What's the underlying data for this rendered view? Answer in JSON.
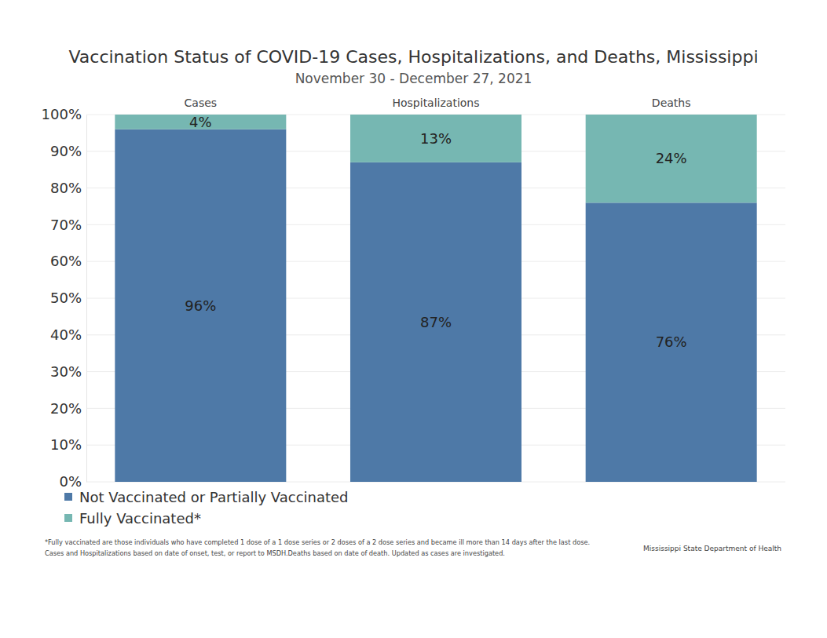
{
  "chart_data": {
    "type": "bar",
    "title": "Vaccination Status of COVID-19 Cases, Hospitalizations, and Deaths, Mississippi",
    "subtitle": "November 30 - December 27, 2021",
    "categories": [
      "Cases",
      "Hospitalizations",
      "Deaths"
    ],
    "series": [
      {
        "name": "Not Vaccinated or Partially Vaccinated",
        "color": "#4e79a7",
        "values": [
          96,
          87,
          76
        ],
        "value_labels": [
          "96%",
          "87%",
          "76%"
        ]
      },
      {
        "name": "Fully Vaccinated*",
        "color": "#76b7b2",
        "values": [
          4,
          13,
          24
        ],
        "value_labels": [
          "4%",
          "13%",
          "24%"
        ]
      }
    ],
    "stacked": true,
    "data_labels": true,
    "grid": true,
    "legend": "bottom-left",
    "ylim": [
      0,
      100
    ],
    "yticks": [
      {
        "value": 0,
        "label": "0%"
      },
      {
        "value": 10,
        "label": "10%"
      },
      {
        "value": 20,
        "label": "20%"
      },
      {
        "value": 30,
        "label": "30%"
      },
      {
        "value": 40,
        "label": "40%"
      },
      {
        "value": 50,
        "label": "50%"
      },
      {
        "value": 60,
        "label": "60%"
      },
      {
        "value": 70,
        "label": "70%"
      },
      {
        "value": 80,
        "label": "80%"
      },
      {
        "value": 90,
        "label": "90%"
      },
      {
        "value": 100,
        "label": "100%"
      }
    ],
    "footnotes": [
      "*Fully vaccinated are those individuals who have completed 1 dose of a 1 dose series or 2 doses of a 2 dose series and became ill more than 14 days after the last dose.",
      "Cases and Hospitalizations based on date of onset, test, or report to MSDH.Deaths based on date of death. Updated as cases are investigated."
    ],
    "source": "Mississippi State Department of Health"
  }
}
